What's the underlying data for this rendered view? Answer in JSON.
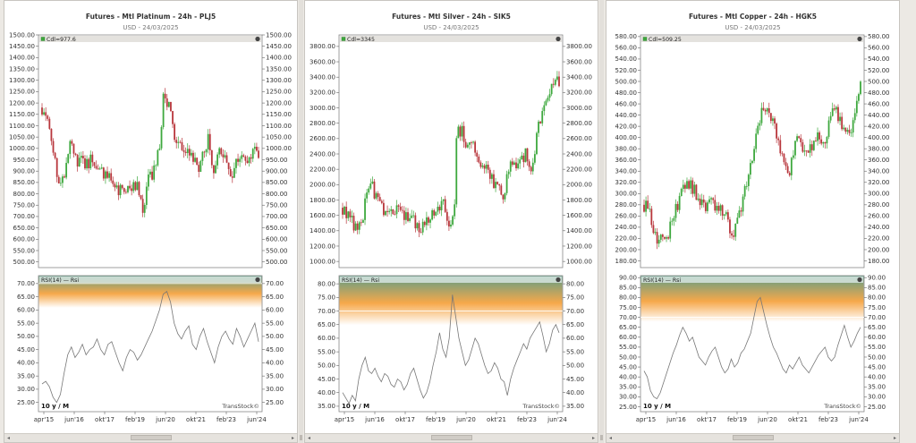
{
  "panels": [
    {
      "id": "pl",
      "title": "Futures - Mtl Platinum - 24h - PLJ5",
      "subtitle": "USD - 24/03/2025",
      "price_legend": "Cdl=977.6",
      "rsi_legend": "RSI(14) — Rsi",
      "period_label": "10 y / M",
      "watermark": "TransStock©",
      "price_axis": {
        "min": 475,
        "max": 1500,
        "ticks": [
          "500.00",
          "550.00",
          "600.00",
          "650.00",
          "700.00",
          "750.00",
          "800.00",
          "850.00",
          "900.00",
          "950.00",
          "1000.00",
          "1050.00",
          "1100.00",
          "1150.00",
          "1200.00",
          "1250.00",
          "1300.00",
          "1350.00",
          "1400.00",
          "1450.00",
          "1500.00"
        ]
      },
      "rsi_axis": {
        "min": 21.5,
        "max": 73,
        "ticks": [
          "25.00",
          "30.00",
          "35.00",
          "40.00",
          "45.00",
          "50.00",
          "55.00",
          "60.00",
          "65.00",
          "70.00"
        ]
      },
      "x_labels": [
        "apr'15",
        "jun'16",
        "okt'17",
        "feb'19",
        "jun'20",
        "okt'21",
        "feb'23",
        "jun'24"
      ],
      "anchors": [
        [
          0,
          1180
        ],
        [
          3,
          1120
        ],
        [
          6,
          1000
        ],
        [
          9,
          850
        ],
        [
          12,
          880
        ],
        [
          15,
          1060
        ],
        [
          18,
          950
        ],
        [
          21,
          940
        ],
        [
          24,
          930
        ],
        [
          27,
          960
        ],
        [
          30,
          900
        ],
        [
          33,
          880
        ],
        [
          36,
          870
        ],
        [
          39,
          820
        ],
        [
          42,
          810
        ],
        [
          45,
          800
        ],
        [
          48,
          820
        ],
        [
          51,
          860
        ],
        [
          54,
          700
        ],
        [
          57,
          860
        ],
        [
          60,
          900
        ],
        [
          63,
          1000
        ],
        [
          65,
          1220
        ],
        [
          68,
          1200
        ],
        [
          71,
          1020
        ],
        [
          74,
          1000
        ],
        [
          77,
          990
        ],
        [
          80,
          980
        ],
        [
          83,
          910
        ],
        [
          86,
          960
        ],
        [
          89,
          1050
        ],
        [
          92,
          900
        ],
        [
          95,
          1000
        ],
        [
          98,
          960
        ],
        [
          101,
          880
        ],
        [
          104,
          940
        ],
        [
          107,
          1000
        ],
        [
          110,
          960
        ],
        [
          113,
          990
        ],
        [
          116,
          977
        ]
      ],
      "rsi_values": [
        32,
        33,
        31,
        27,
        25,
        28,
        36,
        43,
        46,
        42,
        44,
        47,
        43,
        45,
        46,
        49,
        45,
        43,
        47,
        48,
        44,
        40,
        37,
        42,
        45,
        44,
        41,
        43,
        46,
        49,
        52,
        56,
        60,
        66,
        67,
        63,
        55,
        51,
        49,
        52,
        54,
        47,
        45,
        50,
        53,
        48,
        44,
        40,
        46,
        50,
        52,
        49,
        47,
        53,
        50,
        46,
        49,
        52,
        55,
        48
      ],
      "band": {
        "from": 61,
        "to": 72,
        "line": 70
      },
      "bg": "#eceae6"
    },
    {
      "id": "si",
      "title": "Futures - Mtl Silver - 24h - SIK5",
      "subtitle": "USD - 24/03/2025",
      "price_legend": "Cdl=3345",
      "rsi_legend": "RSI(14) — Rsi",
      "period_label": "10 y / M",
      "watermark": "TransStock©",
      "price_axis": {
        "min": 920,
        "max": 3950,
        "ticks": [
          "1000.00",
          "1200.00",
          "1400.00",
          "1600.00",
          "1800.00",
          "2000.00",
          "2200.00",
          "2400.00",
          "2600.00",
          "2800.00",
          "3000.00",
          "3200.00",
          "3400.00",
          "3600.00",
          "3800.00"
        ]
      },
      "rsi_axis": {
        "min": 33,
        "max": 83,
        "ticks": [
          "35.00",
          "40.00",
          "45.00",
          "50.00",
          "55.00",
          "60.00",
          "65.00",
          "70.00",
          "75.00",
          "80.00"
        ]
      },
      "x_labels": [
        "apr'15",
        "jun'16",
        "okt'17",
        "feb'19",
        "jun'20",
        "okt'21",
        "feb'23",
        "jun'24"
      ],
      "anchors": [
        [
          0,
          1700
        ],
        [
          4,
          1600
        ],
        [
          7,
          1420
        ],
        [
          10,
          1500
        ],
        [
          13,
          1850
        ],
        [
          15,
          2050
        ],
        [
          18,
          1800
        ],
        [
          21,
          1700
        ],
        [
          24,
          1650
        ],
        [
          27,
          1700
        ],
        [
          30,
          1650
        ],
        [
          33,
          1600
        ],
        [
          36,
          1580
        ],
        [
          39,
          1480
        ],
        [
          42,
          1460
        ],
        [
          45,
          1550
        ],
        [
          48,
          1600
        ],
        [
          51,
          1700
        ],
        [
          54,
          1750
        ],
        [
          57,
          1480
        ],
        [
          60,
          1700
        ],
        [
          61,
          2650
        ],
        [
          64,
          2700
        ],
        [
          67,
          2450
        ],
        [
          70,
          2500
        ],
        [
          73,
          2300
        ],
        [
          76,
          2200
        ],
        [
          79,
          2150
        ],
        [
          81,
          2000
        ],
        [
          84,
          1900
        ],
        [
          86,
          1850
        ],
        [
          89,
          2200
        ],
        [
          92,
          2300
        ],
        [
          95,
          2250
        ],
        [
          98,
          2400
        ],
        [
          101,
          2250
        ],
        [
          104,
          2600
        ],
        [
          107,
          3000
        ],
        [
          110,
          3200
        ],
        [
          113,
          3300
        ],
        [
          116,
          3345
        ]
      ],
      "rsi_values": [
        40,
        38,
        36,
        39,
        37,
        45,
        50,
        53,
        48,
        47,
        49,
        46,
        44,
        47,
        46,
        43,
        42,
        45,
        44,
        41,
        43,
        47,
        49,
        45,
        41,
        38,
        40,
        44,
        50,
        55,
        62,
        56,
        53,
        60,
        76,
        68,
        60,
        55,
        50,
        52,
        56,
        60,
        58,
        54,
        50,
        47,
        48,
        51,
        49,
        45,
        44,
        39,
        45,
        49,
        52,
        55,
        58,
        56,
        60,
        62,
        64,
        66,
        61,
        55,
        58,
        63,
        65,
        62
      ],
      "band": {
        "from": 65,
        "to": 81,
        "line": 70
      },
      "bg": "#eceae6"
    },
    {
      "id": "hg",
      "title": "Futures - Mtl Copper - 24h - HGK5",
      "subtitle": "USD - 24/03/2025",
      "price_legend": "Cdl=509.25",
      "rsi_legend": "RSI(14) — Rsi",
      "period_label": "10 y / M",
      "watermark": "TransStock©",
      "price_axis": {
        "min": 168,
        "max": 583,
        "ticks": [
          "180.00",
          "200.00",
          "220.00",
          "240.00",
          "260.00",
          "280.00",
          "300.00",
          "320.00",
          "340.00",
          "360.00",
          "380.00",
          "400.00",
          "420.00",
          "440.00",
          "460.00",
          "480.00",
          "500.00",
          "520.00",
          "540.00",
          "560.00",
          "580.00"
        ]
      },
      "rsi_axis": {
        "min": 22.5,
        "max": 91,
        "ticks": [
          "25.00",
          "30.00",
          "35.00",
          "40.00",
          "45.00",
          "50.00",
          "55.00",
          "60.00",
          "65.00",
          "70.00",
          "75.00",
          "80.00",
          "85.00",
          "90.00"
        ]
      },
      "x_labels": [
        "apr'15",
        "jun'16",
        "okt'17",
        "feb'19",
        "jun'20",
        "okt'21",
        "feb'23",
        "jun'24"
      ],
      "anchors": [
        [
          0,
          280
        ],
        [
          3,
          270
        ],
        [
          6,
          220
        ],
        [
          9,
          215
        ],
        [
          12,
          220
        ],
        [
          15,
          250
        ],
        [
          18,
          280
        ],
        [
          21,
          310
        ],
        [
          24,
          320
        ],
        [
          27,
          305
        ],
        [
          30,
          290
        ],
        [
          33,
          280
        ],
        [
          36,
          280
        ],
        [
          39,
          270
        ],
        [
          42,
          270
        ],
        [
          45,
          250
        ],
        [
          47,
          215
        ],
        [
          50,
          250
        ],
        [
          53,
          290
        ],
        [
          56,
          330
        ],
        [
          59,
          380
        ],
        [
          61,
          430
        ],
        [
          64,
          450
        ],
        [
          67,
          440
        ],
        [
          70,
          420
        ],
        [
          72,
          400
        ],
        [
          75,
          350
        ],
        [
          78,
          330
        ],
        [
          81,
          400
        ],
        [
          84,
          380
        ],
        [
          87,
          370
        ],
        [
          90,
          380
        ],
        [
          93,
          400
        ],
        [
          96,
          390
        ],
        [
          99,
          420
        ],
        [
          102,
          460
        ],
        [
          105,
          430
        ],
        [
          108,
          410
        ],
        [
          111,
          420
        ],
        [
          114,
          460
        ],
        [
          116,
          509
        ]
      ],
      "rsi_values": [
        43,
        40,
        33,
        30,
        29,
        32,
        37,
        42,
        47,
        52,
        56,
        61,
        65,
        62,
        58,
        60,
        55,
        50,
        48,
        46,
        50,
        53,
        55,
        50,
        45,
        42,
        44,
        49,
        45,
        47,
        52,
        54,
        58,
        62,
        70,
        78,
        80,
        73,
        66,
        60,
        55,
        52,
        48,
        44,
        42,
        46,
        44,
        47,
        50,
        46,
        44,
        42,
        45,
        48,
        51,
        53,
        55,
        50,
        48,
        50,
        56,
        61,
        66,
        60,
        55,
        58,
        62,
        65
      ],
      "band": {
        "from": 68,
        "to": 88,
        "line": 70
      },
      "bg": "#eceae6"
    }
  ],
  "colors": {
    "up": "#3ea83e",
    "down": "#b8363c",
    "rsi_line": "#777777",
    "band_top": "#5f9d86",
    "band_mid": "#f6a84a"
  }
}
